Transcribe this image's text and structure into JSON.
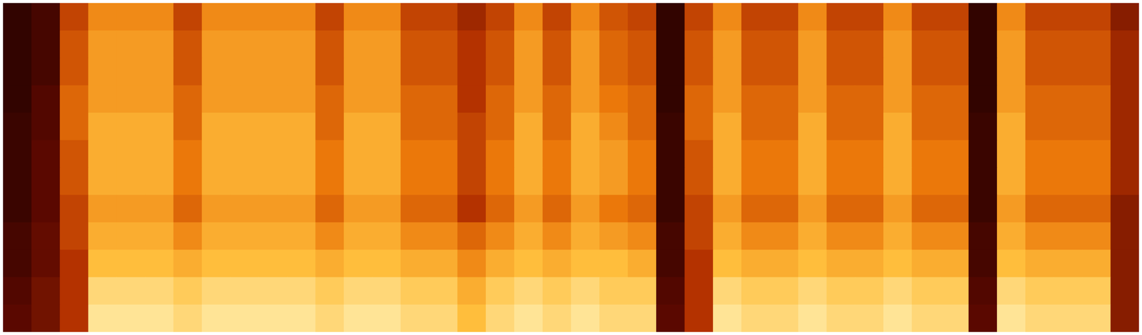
{
  "chart_data": {
    "type": "heatmap",
    "tick_labels": false,
    "color_range": [
      0,
      1
    ],
    "cells": [
      [
        0.1,
        0.15,
        0.45,
        0.65,
        0.65,
        0.65,
        0.45,
        0.65,
        0.65,
        0.65,
        0.65,
        0.45,
        0.65,
        0.65,
        0.45,
        0.45,
        0.35,
        0.45,
        0.65,
        0.45,
        0.65,
        0.5,
        0.45,
        0.1,
        0.45,
        0.65,
        0.45,
        0.45,
        0.65,
        0.45,
        0.45,
        0.65,
        0.45,
        0.45,
        0.1,
        0.65,
        0.45,
        0.45,
        0.45,
        0.3
      ],
      [
        0.1,
        0.15,
        0.5,
        0.7,
        0.7,
        0.7,
        0.5,
        0.7,
        0.7,
        0.7,
        0.7,
        0.5,
        0.7,
        0.7,
        0.5,
        0.5,
        0.4,
        0.5,
        0.7,
        0.5,
        0.7,
        0.55,
        0.5,
        0.1,
        0.5,
        0.7,
        0.5,
        0.5,
        0.7,
        0.5,
        0.5,
        0.7,
        0.5,
        0.5,
        0.1,
        0.7,
        0.5,
        0.5,
        0.5,
        0.35
      ],
      [
        0.1,
        0.15,
        0.5,
        0.7,
        0.7,
        0.7,
        0.5,
        0.7,
        0.7,
        0.7,
        0.7,
        0.5,
        0.7,
        0.7,
        0.5,
        0.5,
        0.4,
        0.5,
        0.7,
        0.5,
        0.7,
        0.55,
        0.5,
        0.1,
        0.5,
        0.7,
        0.5,
        0.5,
        0.7,
        0.5,
        0.5,
        0.7,
        0.5,
        0.5,
        0.1,
        0.7,
        0.5,
        0.5,
        0.5,
        0.35
      ],
      [
        0.1,
        0.18,
        0.55,
        0.7,
        0.7,
        0.7,
        0.55,
        0.7,
        0.7,
        0.7,
        0.7,
        0.55,
        0.7,
        0.7,
        0.55,
        0.55,
        0.4,
        0.55,
        0.7,
        0.55,
        0.7,
        0.6,
        0.55,
        0.1,
        0.55,
        0.7,
        0.55,
        0.55,
        0.7,
        0.55,
        0.55,
        0.7,
        0.55,
        0.55,
        0.1,
        0.7,
        0.55,
        0.55,
        0.55,
        0.35
      ],
      [
        0.12,
        0.18,
        0.55,
        0.75,
        0.75,
        0.75,
        0.55,
        0.75,
        0.75,
        0.75,
        0.75,
        0.55,
        0.75,
        0.75,
        0.55,
        0.55,
        0.45,
        0.55,
        0.75,
        0.55,
        0.75,
        0.65,
        0.55,
        0.12,
        0.55,
        0.75,
        0.55,
        0.55,
        0.75,
        0.55,
        0.55,
        0.75,
        0.55,
        0.55,
        0.12,
        0.75,
        0.55,
        0.55,
        0.55,
        0.35
      ],
      [
        0.12,
        0.2,
        0.5,
        0.75,
        0.75,
        0.75,
        0.6,
        0.75,
        0.75,
        0.75,
        0.75,
        0.6,
        0.75,
        0.75,
        0.6,
        0.6,
        0.45,
        0.6,
        0.75,
        0.6,
        0.75,
        0.7,
        0.6,
        0.12,
        0.5,
        0.75,
        0.6,
        0.6,
        0.75,
        0.6,
        0.6,
        0.75,
        0.6,
        0.6,
        0.12,
        0.75,
        0.6,
        0.6,
        0.6,
        0.35
      ],
      [
        0.12,
        0.2,
        0.5,
        0.75,
        0.75,
        0.75,
        0.6,
        0.75,
        0.75,
        0.75,
        0.75,
        0.6,
        0.75,
        0.75,
        0.6,
        0.6,
        0.45,
        0.6,
        0.75,
        0.6,
        0.75,
        0.7,
        0.6,
        0.12,
        0.5,
        0.75,
        0.6,
        0.6,
        0.75,
        0.6,
        0.6,
        0.75,
        0.6,
        0.6,
        0.12,
        0.75,
        0.6,
        0.6,
        0.6,
        0.35
      ],
      [
        0.12,
        0.2,
        0.45,
        0.7,
        0.7,
        0.7,
        0.55,
        0.7,
        0.7,
        0.7,
        0.7,
        0.55,
        0.7,
        0.7,
        0.55,
        0.55,
        0.4,
        0.55,
        0.7,
        0.55,
        0.7,
        0.6,
        0.55,
        0.12,
        0.45,
        0.7,
        0.55,
        0.55,
        0.7,
        0.55,
        0.55,
        0.7,
        0.55,
        0.55,
        0.12,
        0.7,
        0.55,
        0.55,
        0.55,
        0.3
      ],
      [
        0.15,
        0.22,
        0.45,
        0.75,
        0.75,
        0.75,
        0.65,
        0.75,
        0.75,
        0.75,
        0.75,
        0.65,
        0.75,
        0.75,
        0.65,
        0.65,
        0.55,
        0.65,
        0.75,
        0.65,
        0.75,
        0.7,
        0.65,
        0.15,
        0.45,
        0.75,
        0.65,
        0.65,
        0.75,
        0.65,
        0.65,
        0.75,
        0.65,
        0.65,
        0.15,
        0.75,
        0.65,
        0.65,
        0.65,
        0.3
      ],
      [
        0.15,
        0.22,
        0.4,
        0.8,
        0.8,
        0.8,
        0.75,
        0.8,
        0.8,
        0.8,
        0.8,
        0.75,
        0.8,
        0.8,
        0.75,
        0.75,
        0.65,
        0.75,
        0.8,
        0.75,
        0.8,
        0.8,
        0.75,
        0.15,
        0.4,
        0.8,
        0.75,
        0.75,
        0.8,
        0.75,
        0.75,
        0.8,
        0.75,
        0.75,
        0.15,
        0.8,
        0.75,
        0.75,
        0.75,
        0.3
      ],
      [
        0.18,
        0.25,
        0.4,
        0.9,
        0.9,
        0.9,
        0.85,
        0.9,
        0.9,
        0.9,
        0.9,
        0.85,
        0.9,
        0.9,
        0.85,
        0.85,
        0.75,
        0.85,
        0.9,
        0.85,
        0.9,
        0.85,
        0.85,
        0.18,
        0.4,
        0.9,
        0.85,
        0.85,
        0.9,
        0.85,
        0.85,
        0.9,
        0.85,
        0.85,
        0.18,
        0.9,
        0.85,
        0.85,
        0.85,
        0.3
      ],
      [
        0.2,
        0.25,
        0.4,
        0.95,
        0.95,
        0.95,
        0.9,
        0.95,
        0.95,
        0.95,
        0.95,
        0.9,
        0.95,
        0.95,
        0.9,
        0.9,
        0.8,
        0.9,
        0.95,
        0.9,
        0.95,
        0.9,
        0.9,
        0.2,
        0.4,
        0.95,
        0.9,
        0.9,
        0.95,
        0.9,
        0.9,
        0.95,
        0.9,
        0.9,
        0.2,
        0.95,
        0.9,
        0.9,
        0.9,
        0.3
      ]
    ]
  }
}
